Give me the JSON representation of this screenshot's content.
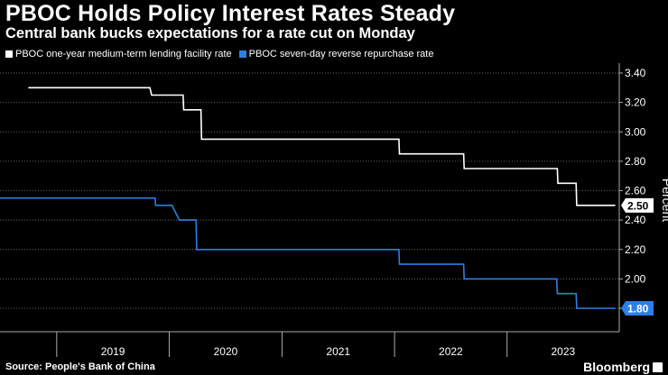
{
  "header": {
    "title": "PBOC Holds Policy Interest Rates Steady",
    "subtitle": "Central bank bucks expectations for a rate cut on Monday"
  },
  "footer": {
    "source": "Source: People's Bank of China",
    "brand": "Bloomberg"
  },
  "colors": {
    "background": "#000000",
    "mlf": "#ffffff",
    "repo": "#2d7fe6",
    "grid": "#666666"
  },
  "chart_data": {
    "type": "line",
    "title": "PBOC Holds Policy Interest Rates Steady",
    "subtitle": "Central bank bucks expectations for a rate cut on Monday",
    "ylabel": "Percent",
    "ylim": [
      1.7,
      3.45
    ],
    "yticks": [
      1.8,
      2.0,
      2.2,
      2.4,
      2.6,
      2.8,
      3.0,
      3.2,
      3.4
    ],
    "ytick_labels": [
      "1.80",
      "2.00",
      "2.20",
      "2.40",
      "2.60",
      "2.80",
      "3.00",
      "3.20",
      "3.40"
    ],
    "xlim": [
      "2018-07-01",
      "2023-12-31"
    ],
    "x_year_labels": [
      "2019",
      "2020",
      "2021",
      "2022",
      "2023"
    ],
    "grid": "horizontal dotted",
    "y_axis_position": "right",
    "legend_position": "top-left",
    "series": [
      {
        "name": "PBOC one-year medium-term lending facility rate",
        "color": "#ffffff",
        "end_label": "2.50",
        "points": [
          [
            "2018-10-01",
            3.3
          ],
          [
            "2019-10-30",
            3.3
          ],
          [
            "2019-11-05",
            3.25
          ],
          [
            "2020-02-15",
            3.25
          ],
          [
            "2020-02-17",
            3.15
          ],
          [
            "2020-04-13",
            3.15
          ],
          [
            "2020-04-15",
            2.95
          ],
          [
            "2022-01-15",
            2.95
          ],
          [
            "2022-01-17",
            2.85
          ],
          [
            "2022-08-13",
            2.85
          ],
          [
            "2022-08-15",
            2.75
          ],
          [
            "2023-06-13",
            2.75
          ],
          [
            "2023-06-15",
            2.65
          ],
          [
            "2023-08-13",
            2.65
          ],
          [
            "2023-08-15",
            2.5
          ],
          [
            "2023-12-18",
            2.5
          ]
        ]
      },
      {
        "name": "PBOC seven-day reverse repurchase rate",
        "color": "#2d7fe6",
        "end_label": "1.80",
        "points": [
          [
            "2018-07-01",
            2.55
          ],
          [
            "2019-11-16",
            2.55
          ],
          [
            "2019-11-18",
            2.5
          ],
          [
            "2020-01-10",
            2.5
          ],
          [
            "2020-02-03",
            2.4
          ],
          [
            "2020-03-28",
            2.4
          ],
          [
            "2020-03-30",
            2.2
          ],
          [
            "2022-01-15",
            2.2
          ],
          [
            "2022-01-17",
            2.1
          ],
          [
            "2022-08-13",
            2.1
          ],
          [
            "2022-08-15",
            2.0
          ],
          [
            "2023-06-11",
            2.0
          ],
          [
            "2023-06-13",
            1.9
          ],
          [
            "2023-08-13",
            1.9
          ],
          [
            "2023-08-15",
            1.8
          ],
          [
            "2023-12-18",
            1.8
          ]
        ]
      }
    ]
  }
}
